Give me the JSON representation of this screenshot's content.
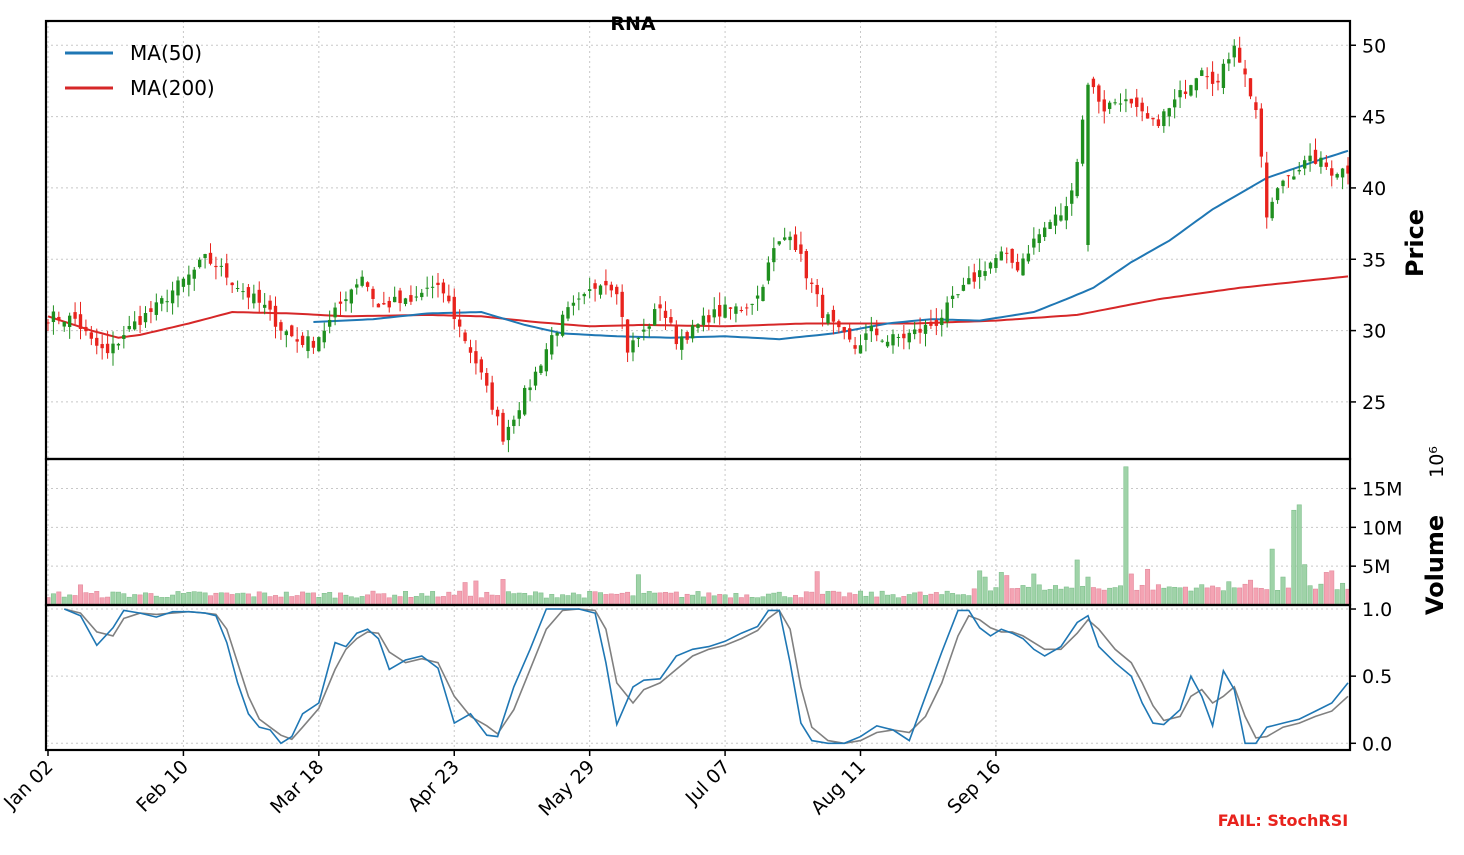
{
  "chart_data": {
    "type": "candlestick",
    "title": "RNA",
    "footer_text": "FAIL: StochRSI",
    "colors": {
      "up": "#1f8f1f",
      "down": "#e8231d",
      "ma50": "#1f77b4",
      "ma200": "#d62728",
      "vol_up": "#9fd3a8",
      "vol_down": "#f4a3b3",
      "stoch_k": "#1f77b4",
      "stoch_d": "#808080",
      "fail": "#e8231d"
    },
    "x_ticks": [
      "Jan 02",
      "Feb 10",
      "Mar 18",
      "Apr 23",
      "May 29",
      "Jul 07",
      "Aug 11",
      "Sep 16"
    ],
    "price_panel": {
      "ylabel": "Price",
      "yticks": [
        25,
        30,
        35,
        40,
        45,
        50
      ],
      "ylim": [
        21,
        51.7
      ],
      "legend": [
        {
          "name": "MA(50)",
          "color": "#1f77b4"
        },
        {
          "name": "MA(200)",
          "color": "#d62728"
        }
      ],
      "legend_position": "top-left",
      "anchors": [
        [
          0,
          31.0
        ],
        [
          5,
          30.8
        ],
        [
          8,
          29.2
        ],
        [
          11,
          28.3
        ],
        [
          14,
          29.8
        ],
        [
          17,
          30.8
        ],
        [
          20,
          31.6
        ],
        [
          23,
          32.8
        ],
        [
          26,
          33.8
        ],
        [
          29,
          35.0
        ],
        [
          31,
          34.6
        ],
        [
          34,
          33.5
        ],
        [
          37,
          32.5
        ],
        [
          40,
          31.6
        ],
        [
          43,
          30.2
        ],
        [
          46,
          29.3
        ],
        [
          49,
          29.2
        ],
        [
          52,
          30.6
        ],
        [
          55,
          32.5
        ],
        [
          58,
          33.9
        ],
        [
          61,
          31.6
        ],
        [
          64,
          32.0
        ],
        [
          67,
          31.9
        ],
        [
          70,
          33.0
        ],
        [
          73,
          32.7
        ],
        [
          76,
          30.2
        ],
        [
          79,
          27.8
        ],
        [
          82,
          24.8
        ],
        [
          84,
          22.6
        ],
        [
          87,
          24.8
        ],
        [
          90,
          27.0
        ],
        [
          93,
          29.6
        ],
        [
          96,
          31.3
        ],
        [
          99,
          32.2
        ],
        [
          102,
          33.6
        ],
        [
          105,
          33.0
        ],
        [
          107,
          28.7
        ],
        [
          110,
          29.9
        ],
        [
          113,
          31.8
        ],
        [
          116,
          29.4
        ],
        [
          119,
          30.0
        ],
        [
          122,
          31.0
        ],
        [
          125,
          31.4
        ],
        [
          128,
          31.6
        ],
        [
          131,
          32.4
        ],
        [
          134,
          35.6
        ],
        [
          137,
          37.0
        ],
        [
          140,
          34.0
        ],
        [
          143,
          31.3
        ],
        [
          146,
          29.8
        ],
        [
          149,
          28.8
        ],
        [
          152,
          30.0
        ],
        [
          155,
          29.3
        ],
        [
          158,
          29.6
        ],
        [
          161,
          30.0
        ],
        [
          164,
          30.6
        ],
        [
          167,
          32.0
        ],
        [
          170,
          33.3
        ],
        [
          173,
          34.5
        ],
        [
          176,
          35.3
        ],
        [
          179,
          34.5
        ],
        [
          182,
          36.3
        ],
        [
          185,
          37.6
        ],
        [
          188,
          38.5
        ],
        [
          190,
          42.0
        ],
        [
          192,
          47.5
        ],
        [
          195,
          45.6
        ],
        [
          198,
          46.3
        ],
        [
          201,
          45.3
        ],
        [
          204,
          44.4
        ],
        [
          207,
          45.5
        ],
        [
          210,
          47.0
        ],
        [
          213,
          48.6
        ],
        [
          216,
          47.3
        ],
        [
          219,
          50.3
        ],
        [
          221,
          47.8
        ],
        [
          223,
          45.5
        ],
        [
          225,
          38.0
        ],
        [
          228,
          40.6
        ],
        [
          231,
          41.5
        ],
        [
          234,
          42.0
        ],
        [
          237,
          41.2
        ],
        [
          240,
          41.3
        ]
      ],
      "ma50_anchors": [
        [
          49,
          30.6
        ],
        [
          60,
          30.8
        ],
        [
          70,
          31.2
        ],
        [
          80,
          31.3
        ],
        [
          88,
          30.4
        ],
        [
          95,
          29.8
        ],
        [
          105,
          29.6
        ],
        [
          115,
          29.5
        ],
        [
          125,
          29.6
        ],
        [
          135,
          29.4
        ],
        [
          145,
          29.8
        ],
        [
          155,
          30.5
        ],
        [
          163,
          30.8
        ],
        [
          172,
          30.7
        ],
        [
          182,
          31.3
        ],
        [
          188,
          32.2
        ],
        [
          193,
          33.0
        ],
        [
          200,
          34.8
        ],
        [
          207,
          36.3
        ],
        [
          215,
          38.5
        ],
        [
          225,
          40.7
        ],
        [
          235,
          42.0
        ],
        [
          240,
          42.6
        ]
      ],
      "ma200_anchors": [
        [
          0,
          31.0
        ],
        [
          8,
          30.0
        ],
        [
          13,
          29.5
        ],
        [
          17,
          29.7
        ],
        [
          26,
          30.5
        ],
        [
          34,
          31.3
        ],
        [
          45,
          31.2
        ],
        [
          55,
          31.0
        ],
        [
          70,
          31.1
        ],
        [
          80,
          31.0
        ],
        [
          90,
          30.6
        ],
        [
          100,
          30.3
        ],
        [
          110,
          30.4
        ],
        [
          125,
          30.3
        ],
        [
          140,
          30.5
        ],
        [
          160,
          30.5
        ],
        [
          175,
          30.7
        ],
        [
          190,
          31.1
        ],
        [
          205,
          32.2
        ],
        [
          220,
          33.0
        ],
        [
          230,
          33.4
        ],
        [
          240,
          33.8
        ]
      ]
    },
    "volume_panel": {
      "ylabel": "Volume",
      "scale_label": "10⁶",
      "yticks": [
        5,
        10,
        15
      ],
      "ytick_labels": [
        "5M",
        "10M",
        "15M"
      ],
      "ylim": [
        0,
        18.8
      ],
      "unit": "millions",
      "spikes": [
        [
          6,
          2.6
        ],
        [
          77,
          2.9
        ],
        [
          79,
          3.1
        ],
        [
          84,
          3.3
        ],
        [
          109,
          3.9
        ],
        [
          142,
          4.3
        ],
        [
          172,
          4.4
        ],
        [
          173,
          3.6
        ],
        [
          176,
          4.2
        ],
        [
          177,
          3.8
        ],
        [
          182,
          4.0
        ],
        [
          190,
          5.8
        ],
        [
          192,
          3.6
        ],
        [
          199,
          17.8
        ],
        [
          200,
          4.0
        ],
        [
          203,
          4.6
        ],
        [
          218,
          3.0
        ],
        [
          222,
          3.2
        ],
        [
          226,
          7.2
        ],
        [
          228,
          3.6
        ],
        [
          230,
          12.2
        ],
        [
          231,
          12.9
        ],
        [
          232,
          5.2
        ],
        [
          236,
          4.2
        ],
        [
          237,
          4.4
        ],
        [
          239,
          2.8
        ]
      ]
    },
    "stoch_panel": {
      "ylabel": "",
      "yticks": [
        0.0,
        0.5,
        1.0
      ],
      "ytick_labels": [
        "0.0",
        "0.5",
        "1.0"
      ],
      "ylim": [
        -0.05,
        1.03
      ],
      "k_anchors": [
        [
          3,
          1.0
        ],
        [
          6,
          0.95
        ],
        [
          9,
          0.73
        ],
        [
          12,
          0.86
        ],
        [
          14,
          0.99
        ],
        [
          17,
          0.97
        ],
        [
          20,
          0.94
        ],
        [
          23,
          0.98
        ],
        [
          26,
          0.98
        ],
        [
          29,
          0.97
        ],
        [
          31,
          0.95
        ],
        [
          33,
          0.75
        ],
        [
          35,
          0.45
        ],
        [
          37,
          0.22
        ],
        [
          39,
          0.12
        ],
        [
          41,
          0.1
        ],
        [
          43,
          0.0
        ],
        [
          45,
          0.05
        ],
        [
          47,
          0.22
        ],
        [
          50,
          0.3
        ],
        [
          53,
          0.75
        ],
        [
          55,
          0.72
        ],
        [
          57,
          0.82
        ],
        [
          59,
          0.85
        ],
        [
          61,
          0.78
        ],
        [
          63,
          0.55
        ],
        [
          66,
          0.62
        ],
        [
          69,
          0.65
        ],
        [
          72,
          0.56
        ],
        [
          75,
          0.15
        ],
        [
          78,
          0.22
        ],
        [
          81,
          0.06
        ],
        [
          83,
          0.05
        ],
        [
          86,
          0.42
        ],
        [
          89,
          0.7
        ],
        [
          92,
          1.0
        ],
        [
          95,
          1.0
        ],
        [
          98,
          1.0
        ],
        [
          101,
          0.97
        ],
        [
          103,
          0.6
        ],
        [
          105,
          0.14
        ],
        [
          108,
          0.42
        ],
        [
          110,
          0.47
        ],
        [
          113,
          0.48
        ],
        [
          116,
          0.65
        ],
        [
          119,
          0.7
        ],
        [
          122,
          0.72
        ],
        [
          125,
          0.76
        ],
        [
          128,
          0.82
        ],
        [
          131,
          0.87
        ],
        [
          133,
          0.99
        ],
        [
          135,
          0.99
        ],
        [
          137,
          0.6
        ],
        [
          139,
          0.15
        ],
        [
          141,
          0.02
        ],
        [
          144,
          0.0
        ],
        [
          147,
          0.0
        ],
        [
          150,
          0.05
        ],
        [
          153,
          0.13
        ],
        [
          156,
          0.1
        ],
        [
          159,
          0.02
        ],
        [
          162,
          0.35
        ],
        [
          165,
          0.68
        ],
        [
          168,
          0.99
        ],
        [
          170,
          0.99
        ],
        [
          172,
          0.86
        ],
        [
          174,
          0.8
        ],
        [
          176,
          0.85
        ],
        [
          178,
          0.82
        ],
        [
          180,
          0.78
        ],
        [
          182,
          0.7
        ],
        [
          184,
          0.65
        ],
        [
          187,
          0.72
        ],
        [
          190,
          0.9
        ],
        [
          192,
          0.95
        ],
        [
          194,
          0.72
        ],
        [
          197,
          0.6
        ],
        [
          200,
          0.5
        ],
        [
          202,
          0.3
        ],
        [
          204,
          0.15
        ],
        [
          206,
          0.14
        ],
        [
          209,
          0.25
        ],
        [
          211,
          0.5
        ],
        [
          213,
          0.35
        ],
        [
          215,
          0.13
        ],
        [
          217,
          0.54
        ],
        [
          219,
          0.4
        ],
        [
          221,
          0.0
        ],
        [
          223,
          0.0
        ],
        [
          225,
          0.12
        ],
        [
          228,
          0.15
        ],
        [
          231,
          0.18
        ],
        [
          234,
          0.24
        ],
        [
          237,
          0.3
        ],
        [
          240,
          0.45
        ]
      ],
      "d_anchors": [
        [
          3,
          1.0
        ],
        [
          6,
          0.97
        ],
        [
          9,
          0.83
        ],
        [
          12,
          0.8
        ],
        [
          14,
          0.93
        ],
        [
          17,
          0.97
        ],
        [
          20,
          0.96
        ],
        [
          23,
          0.97
        ],
        [
          26,
          0.98
        ],
        [
          29,
          0.97
        ],
        [
          31,
          0.96
        ],
        [
          33,
          0.85
        ],
        [
          35,
          0.6
        ],
        [
          37,
          0.35
        ],
        [
          39,
          0.18
        ],
        [
          41,
          0.12
        ],
        [
          43,
          0.06
        ],
        [
          45,
          0.03
        ],
        [
          47,
          0.12
        ],
        [
          50,
          0.26
        ],
        [
          53,
          0.55
        ],
        [
          55,
          0.7
        ],
        [
          57,
          0.78
        ],
        [
          59,
          0.83
        ],
        [
          61,
          0.82
        ],
        [
          63,
          0.68
        ],
        [
          66,
          0.6
        ],
        [
          69,
          0.63
        ],
        [
          72,
          0.6
        ],
        [
          75,
          0.35
        ],
        [
          78,
          0.2
        ],
        [
          81,
          0.13
        ],
        [
          83,
          0.07
        ],
        [
          86,
          0.25
        ],
        [
          89,
          0.55
        ],
        [
          92,
          0.85
        ],
        [
          95,
          0.99
        ],
        [
          98,
          1.0
        ],
        [
          101,
          0.99
        ],
        [
          103,
          0.85
        ],
        [
          105,
          0.45
        ],
        [
          108,
          0.3
        ],
        [
          110,
          0.4
        ],
        [
          113,
          0.45
        ],
        [
          116,
          0.55
        ],
        [
          119,
          0.65
        ],
        [
          122,
          0.7
        ],
        [
          125,
          0.73
        ],
        [
          128,
          0.78
        ],
        [
          131,
          0.84
        ],
        [
          133,
          0.93
        ],
        [
          135,
          0.99
        ],
        [
          137,
          0.85
        ],
        [
          139,
          0.42
        ],
        [
          141,
          0.12
        ],
        [
          144,
          0.02
        ],
        [
          147,
          0.0
        ],
        [
          150,
          0.02
        ],
        [
          153,
          0.08
        ],
        [
          156,
          0.1
        ],
        [
          159,
          0.08
        ],
        [
          162,
          0.2
        ],
        [
          165,
          0.45
        ],
        [
          168,
          0.8
        ],
        [
          170,
          0.95
        ],
        [
          172,
          0.92
        ],
        [
          174,
          0.86
        ],
        [
          176,
          0.83
        ],
        [
          178,
          0.83
        ],
        [
          180,
          0.8
        ],
        [
          182,
          0.75
        ],
        [
          184,
          0.7
        ],
        [
          187,
          0.7
        ],
        [
          190,
          0.82
        ],
        [
          192,
          0.92
        ],
        [
          194,
          0.85
        ],
        [
          197,
          0.7
        ],
        [
          200,
          0.6
        ],
        [
          202,
          0.45
        ],
        [
          204,
          0.28
        ],
        [
          206,
          0.17
        ],
        [
          209,
          0.2
        ],
        [
          211,
          0.35
        ],
        [
          213,
          0.4
        ],
        [
          215,
          0.3
        ],
        [
          217,
          0.35
        ],
        [
          219,
          0.42
        ],
        [
          221,
          0.2
        ],
        [
          223,
          0.04
        ],
        [
          225,
          0.05
        ],
        [
          228,
          0.12
        ],
        [
          231,
          0.15
        ],
        [
          234,
          0.2
        ],
        [
          237,
          0.24
        ],
        [
          240,
          0.35
        ]
      ]
    }
  }
}
